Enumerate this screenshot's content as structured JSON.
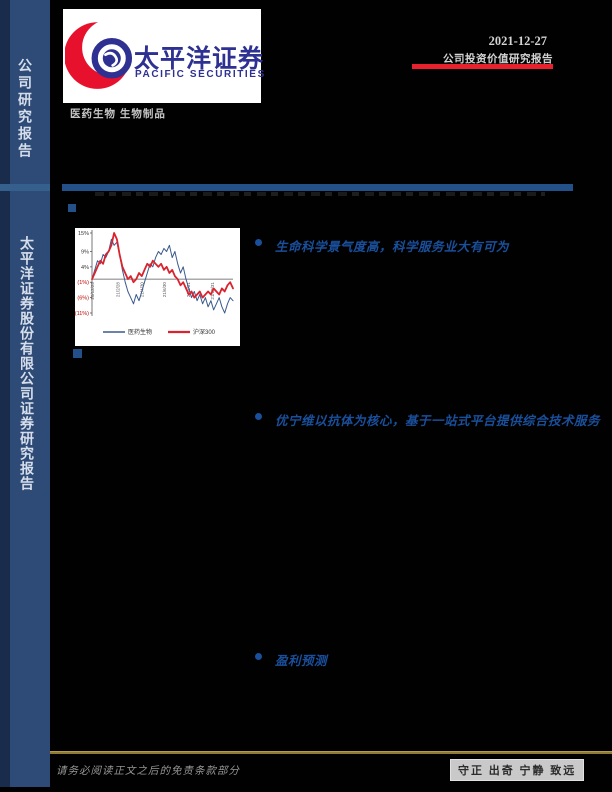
{
  "sidebar": {
    "top_label": "公司研究报告",
    "bottom_label": "太平洋证券股份有限公司证券研究报告"
  },
  "header": {
    "logo_cn": "太平洋证券",
    "logo_en": "PACIFIC SECURITIES",
    "industry": "医药生物 生物制品",
    "date": "2021-12-27",
    "report_type": "公司投资价值研究报告",
    "accent_red": "#e8212d",
    "brand_blue": "#2e3192",
    "rule_blue": "#235089"
  },
  "bullets": [
    {
      "text": "生命科学景气度高，科学服务业大有可为"
    },
    {
      "text": "优宁维以抗体为核心，基于一站式平台提供综合技术服务"
    },
    {
      "text": "盈利预测"
    }
  ],
  "footer": {
    "disclaimer": "请务必阅读正文之后的免责条款部分",
    "motto": "守正 出奇 宁静 致远"
  },
  "chart_data": {
    "type": "line",
    "title": "",
    "xlabel": "",
    "ylabel": "",
    "ylim": [
      -11,
      15
    ],
    "grid": false,
    "legend_position": "bottom",
    "y_ticks": [
      {
        "value": 15,
        "label": "15%",
        "color": "#333333"
      },
      {
        "value": 9,
        "label": "9%",
        "color": "#333333"
      },
      {
        "value": 4,
        "label": "4%",
        "color": "#333333"
      },
      {
        "value": -1,
        "label": "(1%)",
        "color": "#c00000"
      },
      {
        "value": -6,
        "label": "(6%)",
        "color": "#c00000"
      },
      {
        "value": -11,
        "label": "(11%)",
        "color": "#c00000"
      }
    ],
    "x_ticks": [
      {
        "pos": 0.0,
        "label": "20/12/25"
      },
      {
        "pos": 0.18,
        "label": "21/2/28"
      },
      {
        "pos": 0.35,
        "label": "21/4/30"
      },
      {
        "pos": 0.51,
        "label": "21/6/30"
      },
      {
        "pos": 0.68,
        "label": "21/8/31"
      },
      {
        "pos": 0.85,
        "label": "21/10/31"
      }
    ],
    "series": [
      {
        "name": "医药生物",
        "color": "#3a5a8c",
        "width": 1,
        "values": [
          0,
          3,
          6,
          5,
          8,
          7,
          9,
          13,
          11,
          12,
          8,
          3,
          -1,
          -4,
          -6,
          -8,
          -5,
          -7,
          -4,
          -1,
          2,
          5,
          4,
          7,
          9,
          8,
          10,
          9,
          11,
          7,
          9,
          5,
          2,
          4,
          0,
          -3,
          -6,
          -4,
          -7,
          -5,
          -8,
          -6,
          -9,
          -7,
          -10,
          -8,
          -6,
          -9,
          -11,
          -8,
          -6,
          -7
        ]
      },
      {
        "name": "沪深300",
        "color": "#d9232e",
        "width": 1.8,
        "values": [
          0,
          2,
          4,
          6,
          5,
          8,
          9,
          11,
          15,
          13,
          8,
          4,
          2,
          0,
          1,
          -1,
          0,
          2,
          1,
          3,
          5,
          4,
          6,
          5,
          4,
          5,
          3,
          4,
          2,
          3,
          1,
          0,
          -2,
          -1,
          -3,
          -5,
          -4,
          -6,
          -5,
          -4,
          -6,
          -5,
          -4,
          -5,
          -3,
          -4,
          -5,
          -3,
          -4,
          -2,
          -1,
          -3
        ]
      }
    ]
  }
}
